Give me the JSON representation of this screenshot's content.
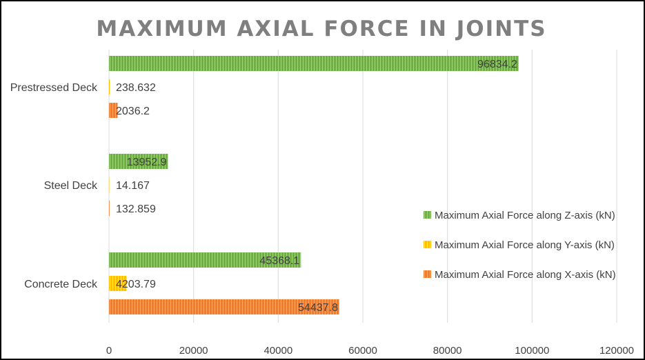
{
  "chart_data": {
    "type": "bar",
    "orientation": "horizontal",
    "title": "MAXIMUM AXIAL FORCE IN JOINTS",
    "categories": [
      "Concrete Deck",
      "Steel Deck",
      "Prestressed Deck"
    ],
    "series": [
      {
        "name": "Maximum Axial Force along X-axis (kN)",
        "color": "#ed7d31",
        "values": [
          54437.8,
          132.859,
          2036.2
        ],
        "labels": [
          "54437.8",
          "132.859",
          "2036.2"
        ]
      },
      {
        "name": "Maximum Axial Force along Y-axis (kN)",
        "color": "#ffc000",
        "values": [
          4203.79,
          14.167,
          238.632
        ],
        "labels": [
          "4203.79",
          "14.167",
          "238.632"
        ]
      },
      {
        "name": "Maximum Axial Force along Z-axis (kN)",
        "color": "#70ad47",
        "values": [
          45368.1,
          13952.9,
          96834.2
        ],
        "labels": [
          "45368.1",
          "13952.9",
          "96834.2"
        ]
      }
    ],
    "xlim": [
      0,
      120000
    ],
    "xticks": [
      0,
      20000,
      40000,
      60000,
      80000,
      100000,
      120000
    ],
    "xtick_labels": [
      "0",
      "20000",
      "40000",
      "60000",
      "80000",
      "100000",
      "120000"
    ],
    "grid": true,
    "legend_position": "right"
  }
}
